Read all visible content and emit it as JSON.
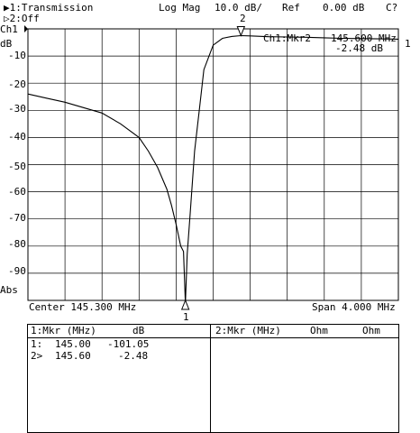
{
  "header": {
    "trace1": "▶1:Transmission",
    "trace2": "▷2:Off",
    "format": "Log Mag",
    "scale": "10.0 dB/",
    "ref": "Ref",
    "ref_value": "0.00 dB",
    "status": "C?"
  },
  "axis": {
    "channel": "Ch1",
    "unit": "dB",
    "abs_label": "Abs",
    "y_ticks": [
      "-10",
      "-20",
      "-30",
      "-40",
      "-50",
      "-60",
      "-70",
      "-80",
      "-90"
    ],
    "center": "Center 145.300 MHz",
    "span": "Span 4.000 MHz"
  },
  "marker_readout": {
    "label": "Ch1:Mkr2",
    "freq": "145.600 MHz",
    "value": "-2.48 dB"
  },
  "marker_flags": {
    "m1": "1",
    "m2": "2",
    "right_tag": "1"
  },
  "chart_data": {
    "type": "line",
    "xlim": [
      143.3,
      147.3
    ],
    "ylim": [
      -100,
      0
    ],
    "ylabel": "dB",
    "grid": true,
    "series": [
      {
        "x": [
          143.3,
          143.5,
          143.7,
          143.9,
          144.1,
          144.3,
          144.5,
          144.6,
          144.7,
          144.8,
          144.85,
          144.9,
          144.95,
          144.98,
          145.0,
          145.02,
          145.05,
          145.1,
          145.15,
          145.2,
          145.3,
          145.4,
          145.5,
          145.6,
          145.7,
          145.9,
          146.1,
          146.3,
          146.5,
          146.7,
          146.9,
          147.1,
          147.3
        ],
        "y": [
          -24.0,
          -25.5,
          -27.0,
          -29.0,
          -31.0,
          -35.0,
          -40.0,
          -45.0,
          -51.0,
          -59.0,
          -65.0,
          -72.0,
          -80.0,
          -82.0,
          -101.05,
          -83.0,
          -69.0,
          -45.0,
          -30.0,
          -15.0,
          -6.0,
          -3.5,
          -2.8,
          -2.48,
          -2.6,
          -2.9,
          -3.0,
          -3.1,
          -3.3,
          -3.5,
          -3.6,
          -3.7,
          -3.8
        ]
      }
    ]
  },
  "markers": [
    {
      "id": "1",
      "freq_mhz": 145.0,
      "db": -101.05
    },
    {
      "id": "2",
      "freq_mhz": 145.6,
      "db": -2.48
    }
  ],
  "mkr_table": {
    "left_title": "1:Mkr (MHz)",
    "left_unit": "dB",
    "rows": [
      {
        "id": "1:",
        "freq": "145.00",
        "value": "-101.05"
      },
      {
        "id": "2>",
        "freq": "145.60",
        "value": "-2.48"
      }
    ],
    "right_title": "2:Mkr (MHz)",
    "right_unit1": "Ohm",
    "right_unit2": "Ohm"
  }
}
